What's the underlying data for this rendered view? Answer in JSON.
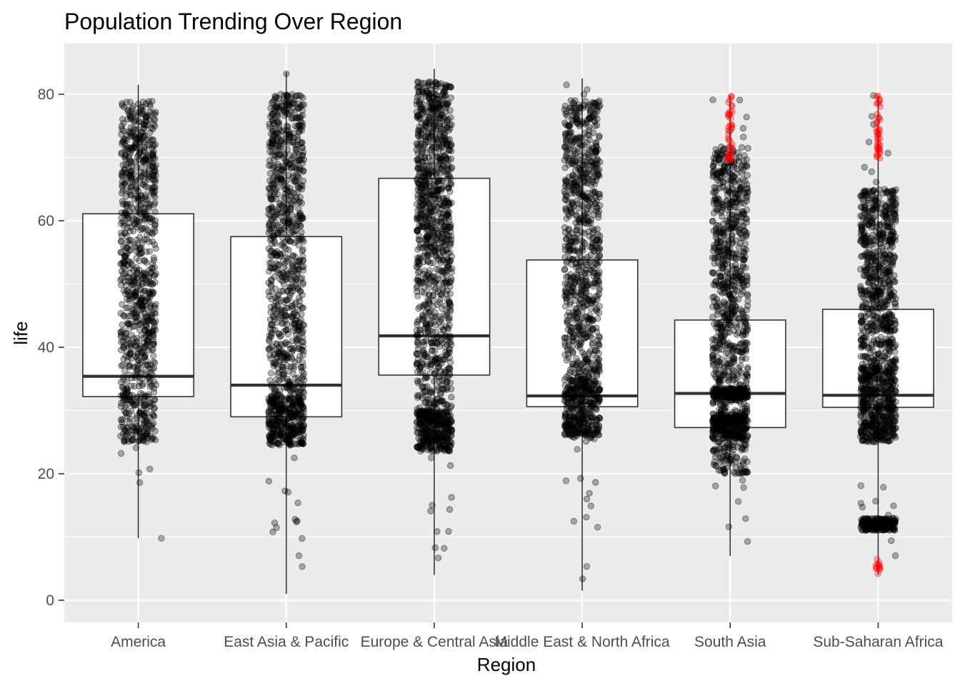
{
  "chart_data": {
    "type": "boxplot",
    "title": "Population Trending Over Region",
    "xlabel": "Region",
    "ylabel": "life",
    "ylim": [
      -3.5,
      88
    ],
    "yticks": [
      0,
      20,
      40,
      60,
      80
    ],
    "grid": true,
    "panel_background": "#ebebeb",
    "grid_color": "#ffffff",
    "point_color": "#000000",
    "highlight_color": "#ff0000",
    "categories": [
      "America",
      "East Asia & Pacific",
      "Europe & Central Asia",
      "Middle East & North Africa",
      "South Asia",
      "Sub-Saharan Africa"
    ],
    "boxes": [
      {
        "region": "America",
        "whisker_low": 9.8,
        "q1": 32.2,
        "median": 35.4,
        "q3": 61.1,
        "whisker_high": 81.5,
        "dense_range": [
          25,
          79
        ],
        "sparse_range": [
          17.5,
          81.8
        ],
        "outliers": [
          9.8
        ],
        "dense_bands": [],
        "highlight_range": null
      },
      {
        "region": "East Asia & Pacific",
        "whisker_low": 1.0,
        "q1": 29.0,
        "median": 34.0,
        "q3": 57.5,
        "whisker_high": 83.5,
        "dense_range": [
          24.5,
          80
        ],
        "sparse_range": [
          1,
          83.5
        ],
        "outliers": [],
        "dense_bands": [
          [
            24.5,
            32.5
          ]
        ],
        "highlight_range": null
      },
      {
        "region": "Europe & Central Asia",
        "whisker_low": 4.0,
        "q1": 35.6,
        "median": 41.8,
        "q3": 66.7,
        "whisker_high": 84.0,
        "dense_range": [
          24,
          82
        ],
        "sparse_range": [
          4,
          84
        ],
        "outliers": [],
        "dense_bands": [
          [
            23.5,
            30
          ],
          [
            55,
            82
          ]
        ],
        "highlight_range": null
      },
      {
        "region": "Middle East & North Africa",
        "whisker_low": 1.5,
        "q1": 30.6,
        "median": 32.3,
        "q3": 53.8,
        "whisker_high": 82.5,
        "dense_range": [
          25.5,
          79
        ],
        "sparse_range": [
          1.5,
          82.5
        ],
        "outliers": [],
        "dense_bands": [
          [
            26,
            35
          ]
        ],
        "highlight_range": null
      },
      {
        "region": "South Asia",
        "whisker_low": 7.0,
        "q1": 27.3,
        "median": 32.7,
        "q3": 44.3,
        "whisker_high": 79.8,
        "dense_range": [
          20,
          72
        ],
        "sparse_range": [
          7,
          79.8
        ],
        "outliers": [],
        "dense_bands": [
          [
            25.5,
            29.5
          ],
          [
            32,
            33.5
          ]
        ],
        "highlight_range": [
          69.5,
          79.8
        ]
      },
      {
        "region": "Sub-Saharan Africa",
        "whisker_low": 4.0,
        "q1": 30.5,
        "median": 32.4,
        "q3": 46.0,
        "whisker_high": 79.8,
        "dense_range": [
          25,
          65
        ],
        "sparse_range": [
          4,
          79.8
        ],
        "outliers": [],
        "dense_bands": [
          [
            25,
            37
          ],
          [
            11,
            13
          ]
        ],
        "highlight_range": [
          69.5,
          79.8
        ],
        "highlight_low": [
          4,
          6.5
        ]
      }
    ]
  }
}
